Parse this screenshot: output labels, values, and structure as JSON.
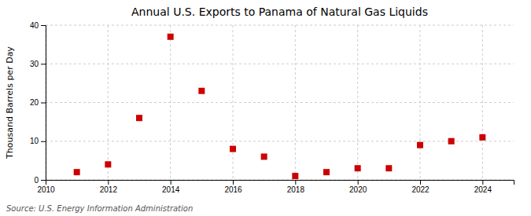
{
  "chart_data": {
    "type": "scatter",
    "title": "Annual U.S. Exports to Panama of Natural Gas Liquids",
    "ylabel": "Thousand Barrels per Day",
    "annotations": [
      "Source: U.S. Energy Information Administration"
    ],
    "x": [
      2011,
      2012,
      2013,
      2014,
      2015,
      2016,
      2017,
      2018,
      2019,
      2020,
      2021,
      2022,
      2023,
      2024
    ],
    "values": [
      2,
      4,
      16,
      37,
      23,
      8,
      6,
      1,
      2,
      3,
      3,
      9,
      10,
      11
    ],
    "xlim": [
      2010,
      2025
    ],
    "ylim": [
      0,
      40
    ],
    "xticks": [
      2010,
      2012,
      2014,
      2016,
      2018,
      2020,
      2022,
      2024
    ],
    "yticks": [
      0,
      10,
      20,
      30,
      40
    ],
    "color": "#cc0000",
    "marker": "square",
    "grid": true
  }
}
